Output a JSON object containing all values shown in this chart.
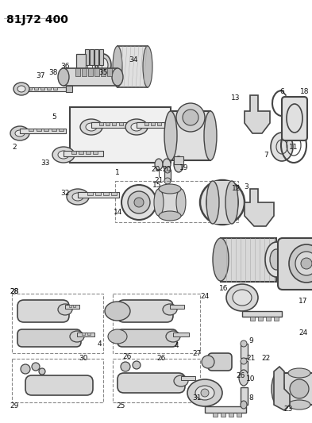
{
  "title": "81J72 400",
  "bg_color": "#ffffff",
  "fig_width": 3.93,
  "fig_height": 5.33,
  "dpi": 100,
  "gray_line": "#444444",
  "gray_fill": "#cccccc",
  "label_color": "#111111",
  "label_fs": 6.5
}
